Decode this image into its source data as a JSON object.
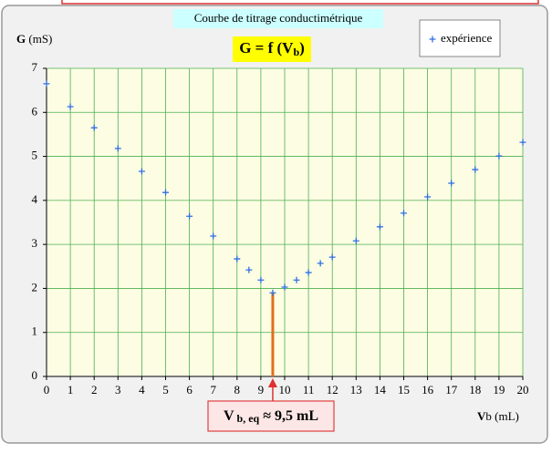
{
  "chart_data": {
    "type": "scatter",
    "title": "Courbe de titrage conductimétrique",
    "formula": [
      "G = f (V",
      "b",
      ")"
    ],
    "y_label": [
      "G",
      " (mS)"
    ],
    "x_label": [
      "V",
      "b (mL)"
    ],
    "annotation": {
      "text": [
        "V",
        " b, eq",
        " ≈ 9,5 mL"
      ],
      "x": 9.5,
      "color": "#e0701a"
    },
    "xlim": [
      0,
      20
    ],
    "ylim": [
      0,
      7
    ],
    "xticks": [
      0,
      1,
      2,
      3,
      4,
      5,
      6,
      7,
      8,
      9,
      10,
      11,
      12,
      13,
      14,
      15,
      16,
      17,
      18,
      19,
      20
    ],
    "yticks": [
      0,
      1,
      2,
      3,
      4,
      5,
      6,
      7
    ],
    "grid": true,
    "legend": "top-right",
    "series": [
      {
        "name": "expérience",
        "color": "#2f6fe0",
        "x": [
          0,
          1,
          2,
          3,
          4,
          5,
          6,
          7,
          8,
          8.5,
          9,
          9.5,
          10,
          10.5,
          11,
          11.5,
          12,
          13,
          14,
          15,
          16,
          17,
          18,
          19,
          20
        ],
        "values": [
          6.65,
          6.13,
          5.65,
          5.18,
          4.66,
          4.18,
          3.64,
          3.19,
          2.67,
          2.42,
          2.19,
          1.9,
          2.03,
          2.19,
          2.36,
          2.57,
          2.71,
          3.08,
          3.4,
          3.71,
          4.08,
          4.39,
          4.7,
          5.01,
          5.32
        ]
      }
    ]
  }
}
